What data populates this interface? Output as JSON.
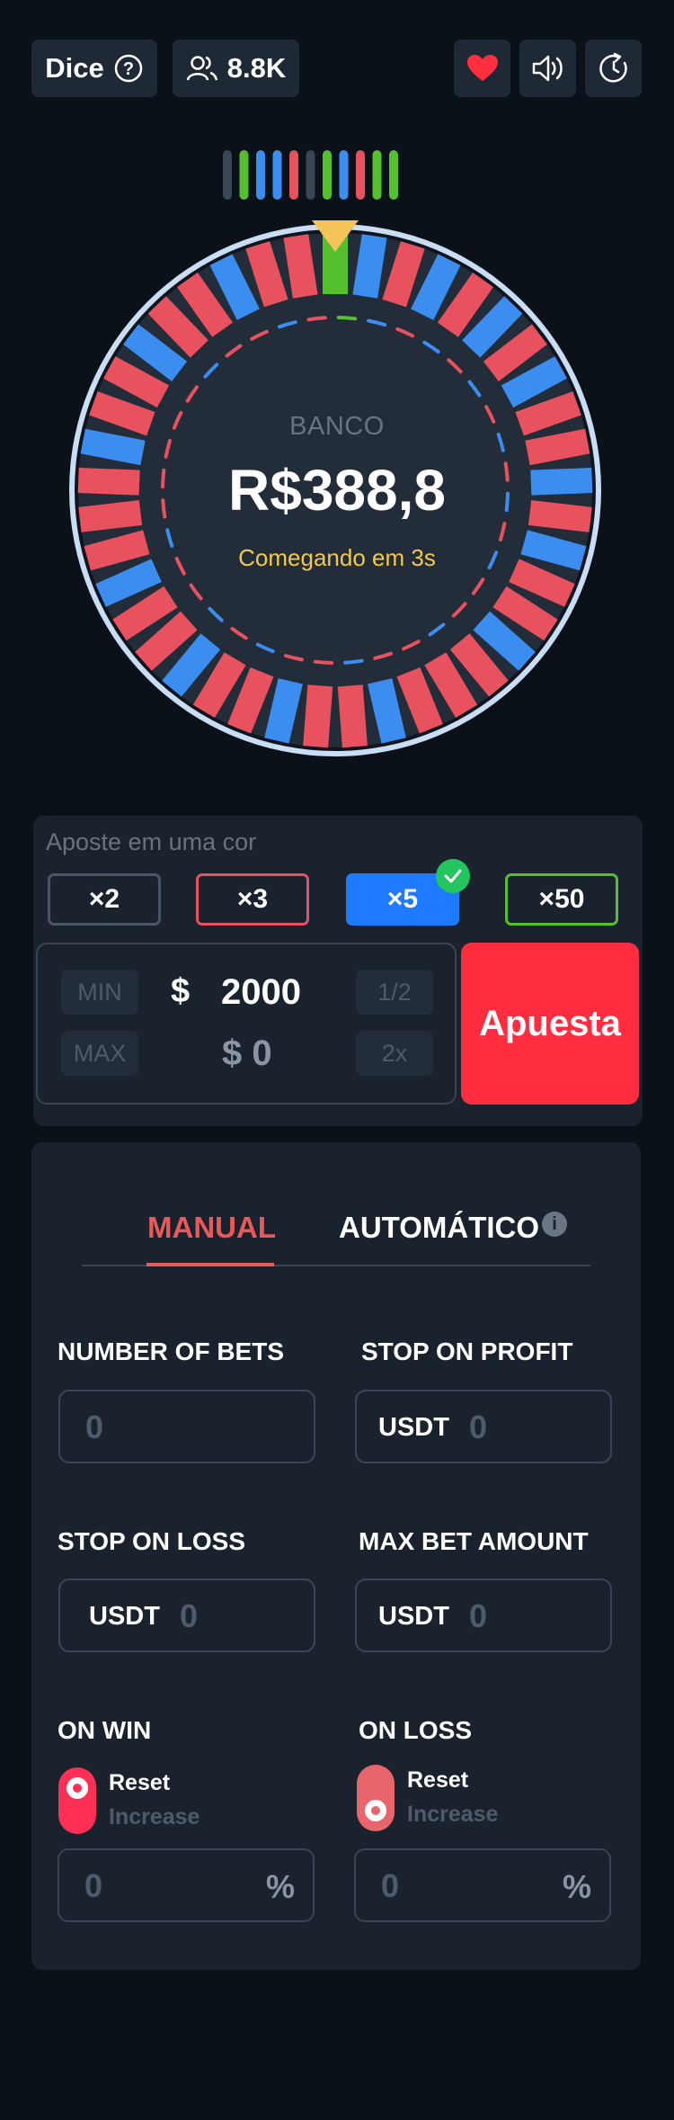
{
  "header": {
    "game_label": "Dice",
    "players_count": "8.8K"
  },
  "wheel": {
    "bank_label": "BANCO",
    "bank_amount": "R$388,8",
    "status": "Comegando em 3s",
    "history": [
      "gray",
      "green",
      "blue",
      "blue",
      "red",
      "gray",
      "green",
      "blue",
      "red",
      "green",
      "green"
    ],
    "segments": [
      "green",
      "blue",
      "red",
      "blue",
      "red",
      "blue",
      "red",
      "blue",
      "red",
      "red",
      "blue",
      "red",
      "blue",
      "red",
      "red",
      "blue",
      "red",
      "red",
      "red",
      "blue",
      "red",
      "red",
      "blue",
      "red",
      "red",
      "blue",
      "red",
      "red",
      "blue",
      "red",
      "red",
      "red",
      "blue",
      "red",
      "red",
      "blue",
      "red",
      "red",
      "blue",
      "red",
      "red"
    ],
    "colors": {
      "red": "#e8525f",
      "blue": "#3b8ef0",
      "green": "#55c02e",
      "gray": "#3a4556",
      "pointer": "#f4c45a",
      "rim": "#c9def4"
    }
  },
  "bet": {
    "title": "Aposte em uma cor",
    "multipliers": [
      {
        "label": "×2",
        "color": "#4a5567"
      },
      {
        "label": "×3",
        "color": "#e8525f"
      },
      {
        "label": "×5",
        "color": "#1e7bff",
        "selected": true
      },
      {
        "label": "×50",
        "color": "#55c02e"
      }
    ],
    "min_label": "MIN",
    "max_label": "MAX",
    "half_label": "1/2",
    "double_label": "2x",
    "currency": "$",
    "amount": "2000",
    "payout": "$ 0",
    "submit_label": "Apuesta"
  },
  "auto": {
    "tabs": [
      {
        "label": "MANUAL",
        "active": true
      },
      {
        "label": "AUTOMÁTICO",
        "active": false
      }
    ],
    "info_icon": "i",
    "fields": {
      "number_of_bets": {
        "label": "NUMBER OF BETS",
        "value": "0"
      },
      "stop_on_profit": {
        "label": "STOP ON PROFIT",
        "unit": "USDT",
        "value": "0"
      },
      "stop_on_loss": {
        "label": "STOP ON LOSS",
        "unit": "USDT",
        "value": "0"
      },
      "max_bet_amount": {
        "label": "MAX BET AMOUNT",
        "unit": "USDT",
        "value": "0"
      }
    },
    "on_win": {
      "label": "ON WIN",
      "reset": "Reset",
      "increase": "Increase",
      "value": "0",
      "percent": "%"
    },
    "on_loss": {
      "label": "ON LOSS",
      "reset": "Reset",
      "increase": "Increase",
      "value": "0",
      "percent": "%"
    }
  }
}
